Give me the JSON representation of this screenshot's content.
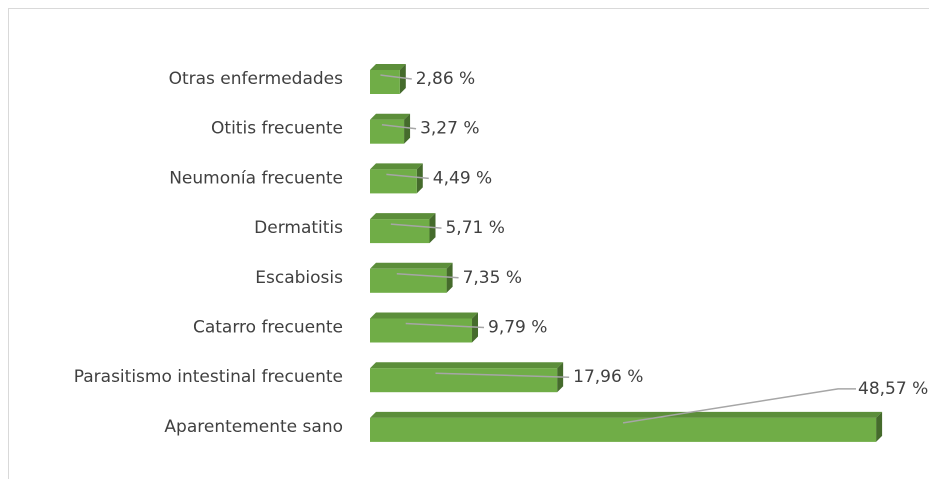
{
  "chart_data": {
    "type": "bar3d",
    "orientation": "horizontal",
    "categories": [
      "Otras enfermedades",
      "Otitis frecuente",
      "Neumonía frecuente",
      "Dermatitis",
      "Escabiosis",
      "Catarro frecuente",
      "Parasitismo intestinal frecuente",
      "Aparentemente sano"
    ],
    "values": [
      2.86,
      3.27,
      4.49,
      5.71,
      7.35,
      9.79,
      17.96,
      48.57
    ],
    "value_labels": [
      "2,86 %",
      "3,27 %",
      "4,49 %",
      "5,71 %",
      "7,35 %",
      "9,79 %",
      "17,96 %",
      "48,57 %"
    ],
    "color": "#70ad47",
    "xlim": [
      0,
      50
    ]
  }
}
